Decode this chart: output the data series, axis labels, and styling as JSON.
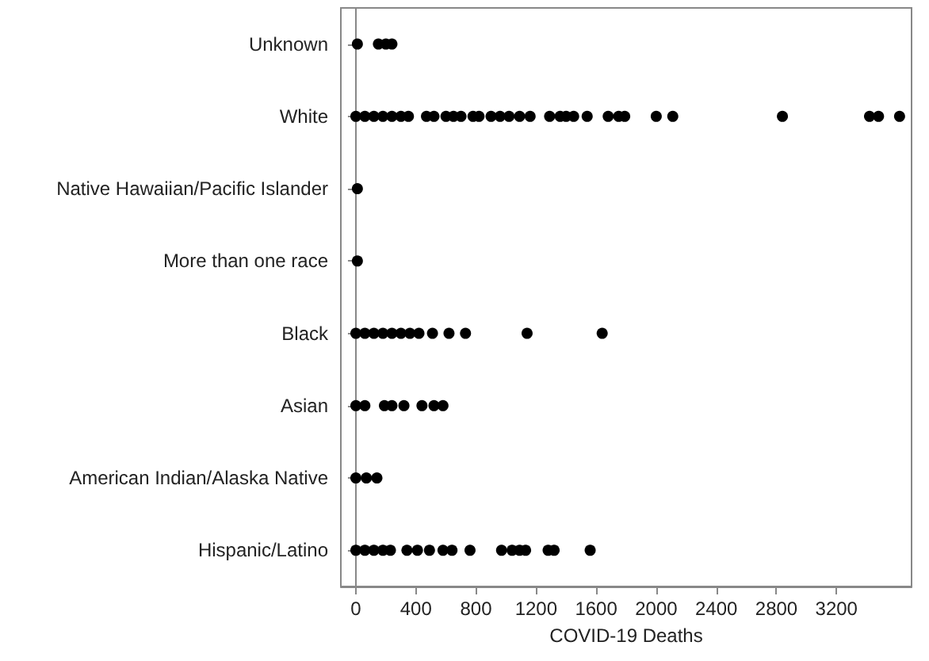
{
  "chart_data": {
    "type": "scatter",
    "orientation": "horizontal",
    "xlabel": "COVID-19 Deaths",
    "marker": "circle",
    "categories": [
      "Unknown",
      "White",
      "Native Hawaiian/Pacific Islander",
      "More than one race",
      "Black",
      "Asian",
      "American Indian/Alaska Native",
      "Hispanic/Latino"
    ],
    "xlim": [
      -100,
      3700
    ],
    "xticks": [
      0,
      400,
      800,
      1200,
      1600,
      2000,
      2400,
      2800,
      3200
    ],
    "series": [
      {
        "color": "#000000",
        "x": [
          "Unknown",
          "Unknown",
          "Unknown",
          "Unknown",
          "White",
          "White",
          "White",
          "White",
          "White",
          "White",
          "White",
          "White",
          "White",
          "White",
          "White",
          "White",
          "White",
          "White",
          "White",
          "White",
          "White",
          "White",
          "White",
          "White",
          "White",
          "White",
          "White",
          "White",
          "White",
          "White",
          "White",
          "White",
          "White",
          "White",
          "White",
          "White",
          "White",
          "Native Hawaiian/Pacific Islander",
          "More than one race",
          "Black",
          "Black",
          "Black",
          "Black",
          "Black",
          "Black",
          "Black",
          "Black",
          "Black",
          "Black",
          "Black",
          "Black",
          "Black",
          "Asian",
          "Asian",
          "Asian",
          "Asian",
          "Asian",
          "Asian",
          "Asian",
          "Asian",
          "American Indian/Alaska Native",
          "American Indian/Alaska Native",
          "American Indian/Alaska Native",
          "Hispanic/Latino",
          "Hispanic/Latino",
          "Hispanic/Latino",
          "Hispanic/Latino",
          "Hispanic/Latino",
          "Hispanic/Latino",
          "Hispanic/Latino",
          "Hispanic/Latino",
          "Hispanic/Latino",
          "Hispanic/Latino",
          "Hispanic/Latino",
          "Hispanic/Latino",
          "Hispanic/Latino",
          "Hispanic/Latino",
          "Hispanic/Latino",
          "Hispanic/Latino",
          "Hispanic/Latino",
          "Hispanic/Latino"
        ],
        "values": [
          10,
          150,
          200,
          240,
          0,
          60,
          120,
          180,
          240,
          300,
          350,
          470,
          520,
          600,
          650,
          700,
          780,
          820,
          900,
          960,
          1020,
          1090,
          1160,
          1290,
          1360,
          1400,
          1450,
          1540,
          1680,
          1750,
          1790,
          2000,
          2110,
          2840,
          3420,
          3480,
          3620,
          10,
          10,
          0,
          60,
          120,
          180,
          240,
          300,
          360,
          420,
          510,
          620,
          730,
          1140,
          1640,
          0,
          60,
          190,
          240,
          320,
          440,
          520,
          580,
          0,
          70,
          140,
          0,
          60,
          120,
          180,
          230,
          340,
          410,
          490,
          580,
          640,
          760,
          970,
          1040,
          1090,
          1130,
          1280,
          1320,
          1560
        ]
      }
    ]
  }
}
